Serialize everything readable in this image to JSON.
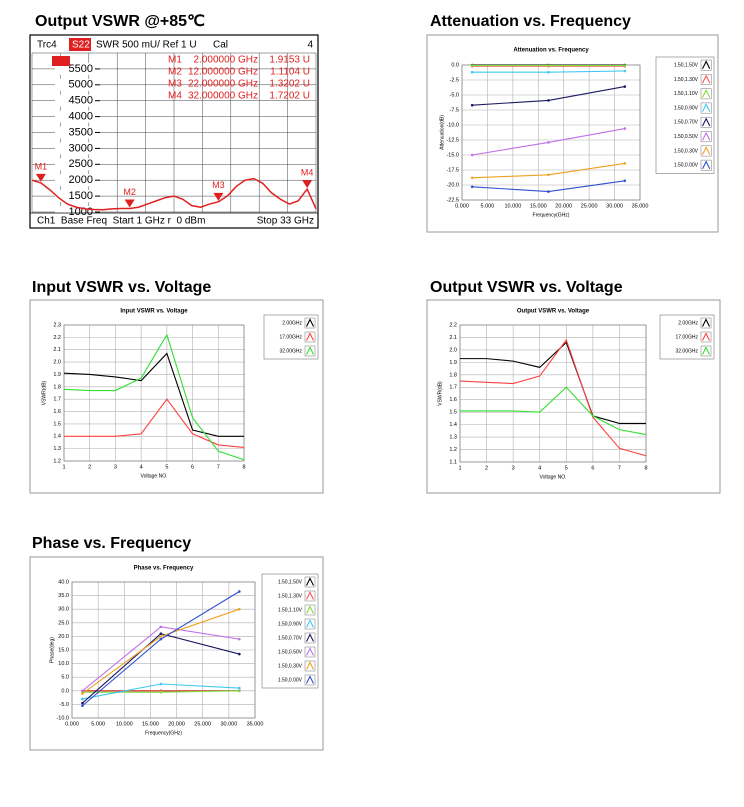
{
  "chart_data": [
    {
      "type": "screen",
      "heading": "Output VSWR @+85℃",
      "header": [
        "Trc4",
        "S22",
        "SWR 500 mU/ Ref 1 U",
        "Cal",
        "4"
      ],
      "footer_left": "Ch1  Base Freq  Start 1 GHz r  0 dBm",
      "footer_right": "Stop 33 GHz",
      "xlim": [
        1,
        33
      ],
      "ylim": [
        1000,
        6000
      ],
      "yticks": [
        1000,
        1500,
        2000,
        2500,
        3000,
        3500,
        4000,
        4500,
        5000,
        5500
      ],
      "grid": true,
      "series": [
        {
          "color": "#e02020",
          "x": [
            1,
            2,
            3,
            4,
            5,
            6,
            7,
            8,
            9,
            10,
            11,
            12,
            13,
            14,
            15,
            16,
            17,
            18,
            19,
            20,
            21,
            22,
            23,
            24,
            25,
            26,
            27,
            28,
            29,
            30,
            31,
            32,
            33
          ],
          "values": [
            2000,
            1915.3,
            1700,
            1450,
            1250,
            1150,
            1100,
            1080,
            1070,
            1100,
            1110,
            1110.4,
            1150,
            1250,
            1350,
            1450,
            1500,
            1400,
            1200,
            1150,
            1250,
            1320.2,
            1500,
            1800,
            2000,
            2050,
            1900,
            1600,
            1400,
            1250,
            1350,
            1720.2,
            1100
          ]
        }
      ],
      "markers": [
        {
          "label": "M1",
          "freq": "2.000000 GHz",
          "value": "1.9153 U",
          "x": 2,
          "y": 1915.3
        },
        {
          "label": "M2",
          "freq": "12.000000 GHz",
          "value": "1.1104 U",
          "x": 12,
          "y": 1110.4
        },
        {
          "label": "M3",
          "freq": "22.000000 GHz",
          "value": "1.3202 U",
          "x": 22,
          "y": 1320.2
        },
        {
          "label": "M4",
          "freq": "32.000000 GHz",
          "value": "1.7202 U",
          "x": 32,
          "y": 1720.2
        }
      ]
    },
    {
      "type": "line",
      "heading": "Attenuation vs. Frequency",
      "title": "Attenuation vs. Frequency",
      "x_label": "Frequency(GHz)",
      "y_label": "Attenuation(dB)",
      "grid": true,
      "dots": true,
      "x": [
        2,
        17,
        32
      ],
      "xlim": [
        0,
        35
      ],
      "ylim": [
        -22.5,
        0
      ],
      "xticks": [
        {
          "value": 0,
          "label": "0.000"
        },
        {
          "value": 5,
          "label": "5.000"
        },
        {
          "value": 10,
          "label": "10.000"
        },
        {
          "value": 15,
          "label": "15.000"
        },
        {
          "value": 20,
          "label": "20.000"
        },
        {
          "value": 25,
          "label": "25.000"
        },
        {
          "value": 30,
          "label": "30.000"
        },
        {
          "value": 35,
          "label": "35.000"
        }
      ],
      "yticks": [
        {
          "value": 0,
          "label": "0.0"
        },
        -2.5,
        {
          "value": -5,
          "label": "-5.0"
        },
        -7.5,
        {
          "value": -10,
          "label": "-10.0"
        },
        -12.5,
        {
          "value": -15,
          "label": "-15.0"
        },
        -17.5,
        {
          "value": -20,
          "label": "-20.0"
        },
        -22.5
      ],
      "series": [
        {
          "name": "1.50,1.50V",
          "color": "#000000",
          "values": [
            0,
            0,
            0
          ]
        },
        {
          "name": "1.50,1.30V",
          "color": "#ff5050",
          "values": [
            -0.2,
            -0.2,
            -0.2
          ]
        },
        {
          "name": "1.50,1.10V",
          "color": "#7fdc40",
          "values": [
            -0.1,
            -0.1,
            -0.1
          ]
        },
        {
          "name": "1.50,0.90V",
          "color": "#40c8f0",
          "values": [
            -1.2,
            -1.2,
            -1.0
          ]
        },
        {
          "name": "1.50,0.70V",
          "color": "#1a1a60",
          "values": [
            -6.7,
            -5.9,
            -3.6
          ]
        },
        {
          "name": "1.50,0.50V",
          "color": "#c070e8",
          "values": [
            -15,
            -12.9,
            -10.6
          ]
        },
        {
          "name": "1.50,0.30V",
          "color": "#f0a020",
          "values": [
            -18.8,
            -18.3,
            -16.4
          ]
        },
        {
          "name": "1.50,0.00V",
          "color": "#3050d0",
          "values": [
            -20.3,
            -21.1,
            -19.3
          ]
        }
      ]
    },
    {
      "type": "line",
      "heading": "Input VSWR vs. Voltage",
      "title": "Input VSWR vs. Voltage",
      "x_label": "Voltage NO.",
      "y_label": "VSWR(dB)",
      "grid": true,
      "dots": false,
      "x": [
        1,
        2,
        3,
        4,
        5,
        6,
        7,
        8
      ],
      "xlim": [
        1,
        8
      ],
      "ylim": [
        1.2,
        2.3
      ],
      "xticks": [
        1,
        2,
        3,
        4,
        5,
        6,
        7,
        8
      ],
      "yticks": [
        1.2,
        1.3,
        1.4,
        1.5,
        1.6,
        1.7,
        1.8,
        1.9,
        {
          "value": 2,
          "label": "2.0"
        },
        2.1,
        2.2,
        2.3
      ],
      "series": [
        {
          "name": "2.00GHz",
          "color": "#000000",
          "values": [
            1.91,
            1.9,
            1.88,
            1.85,
            2.07,
            1.45,
            1.4,
            1.4
          ]
        },
        {
          "name": "17.00GHz",
          "color": "#ff4040",
          "values": [
            1.4,
            1.4,
            1.4,
            1.42,
            1.7,
            1.42,
            1.33,
            1.31
          ]
        },
        {
          "name": "32.00GHz",
          "color": "#30e030",
          "values": [
            1.78,
            1.77,
            1.77,
            1.87,
            2.22,
            1.55,
            1.28,
            1.21
          ]
        }
      ]
    },
    {
      "type": "line",
      "heading": "Output VSWR vs. Voltage",
      "title": "Output VSWR vs. Voltage",
      "x_label": "Voltage NO.",
      "y_label": "VSWR(dB)",
      "grid": true,
      "dots": false,
      "x": [
        1,
        2,
        3,
        4,
        5,
        6,
        7,
        8
      ],
      "xlim": [
        1,
        8
      ],
      "ylim": [
        1.1,
        2.2
      ],
      "xticks": [
        1,
        2,
        3,
        4,
        5,
        6,
        7,
        8
      ],
      "yticks": [
        1.1,
        1.2,
        1.3,
        1.4,
        1.5,
        1.6,
        1.7,
        1.8,
        1.9,
        {
          "value": 2,
          "label": "2.0"
        },
        2.1,
        2.2
      ],
      "series": [
        {
          "name": "2.00GHz",
          "color": "#000000",
          "values": [
            1.93,
            1.93,
            1.91,
            1.86,
            2.06,
            1.47,
            1.41,
            1.41
          ]
        },
        {
          "name": "17.00GHz",
          "color": "#ff4040",
          "values": [
            1.75,
            1.74,
            1.73,
            1.79,
            2.08,
            1.46,
            1.21,
            1.15
          ]
        },
        {
          "name": "32.00GHz",
          "color": "#30e030",
          "values": [
            1.51,
            1.51,
            1.51,
            1.5,
            1.7,
            1.47,
            1.36,
            1.32
          ]
        }
      ]
    },
    {
      "type": "line",
      "heading": "Phase vs. Frequency",
      "title": "Phase vs. Frequency",
      "x_label": "Frequency(GHz)",
      "y_label": "Phase(deg)",
      "grid": true,
      "dots": true,
      "x": [
        2,
        17,
        32
      ],
      "xlim": [
        0,
        35
      ],
      "ylim": [
        -10,
        40
      ],
      "xticks": [
        {
          "value": 0,
          "label": "0.000"
        },
        {
          "value": 5,
          "label": "5.000"
        },
        {
          "value": 10,
          "label": "10.000"
        },
        {
          "value": 15,
          "label": "15.000"
        },
        {
          "value": 20,
          "label": "20.000"
        },
        {
          "value": 25,
          "label": "25.000"
        },
        {
          "value": 30,
          "label": "30.000"
        },
        {
          "value": 35,
          "label": "35.000"
        }
      ],
      "yticks": [
        {
          "value": -10,
          "label": "-10.0"
        },
        {
          "value": -5,
          "label": "-5.0"
        },
        {
          "value": 0,
          "label": "0.0"
        },
        {
          "value": 5,
          "label": "5.0"
        },
        {
          "value": 10,
          "label": "10.0"
        },
        {
          "value": 15,
          "label": "15.0"
        },
        {
          "value": 20,
          "label": "20.0"
        },
        {
          "value": 25,
          "label": "25.0"
        },
        {
          "value": 30,
          "label": "30.0"
        },
        {
          "value": 35,
          "label": "35.0"
        },
        {
          "value": 40,
          "label": "40.0"
        }
      ],
      "series": [
        {
          "name": "1.50,1.50V",
          "color": "#000000",
          "values": [
            0,
            0,
            0
          ]
        },
        {
          "name": "1.50,1.30V",
          "color": "#ff5050",
          "values": [
            0,
            0,
            0
          ]
        },
        {
          "name": "1.50,1.10V",
          "color": "#7fdc40",
          "values": [
            -0.5,
            -0.5,
            0
          ]
        },
        {
          "name": "1.50,0.90V",
          "color": "#40c8f0",
          "values": [
            -3,
            2.5,
            1
          ]
        },
        {
          "name": "1.50,0.70V",
          "color": "#1a1a60",
          "values": [
            -4.5,
            21,
            13.5
          ]
        },
        {
          "name": "1.50,0.50V",
          "color": "#c070e8",
          "values": [
            0,
            23.5,
            19
          ]
        },
        {
          "name": "1.50,0.30V",
          "color": "#f0a020",
          "values": [
            -1,
            20,
            30
          ]
        },
        {
          "name": "1.50,0.00V",
          "color": "#3050d0",
          "values": [
            -5.5,
            19,
            36.5
          ]
        }
      ]
    }
  ]
}
